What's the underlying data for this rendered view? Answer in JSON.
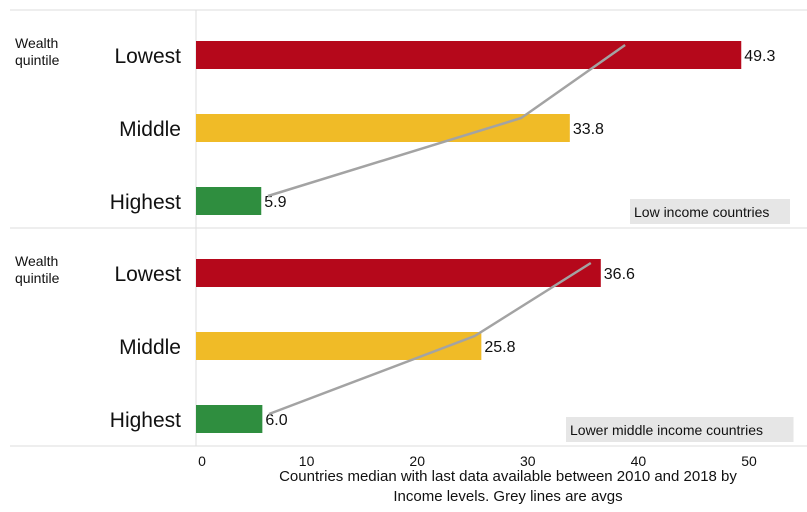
{
  "chart_data": [
    {
      "type": "bar",
      "orientation": "horizontal",
      "panel_label": "Low income countries",
      "ylabel": "Wealth quintile",
      "categories": [
        "Lowest",
        "Middle",
        "Highest"
      ],
      "values": [
        49.3,
        33.8,
        5.9
      ],
      "value_labels": [
        "49.3",
        "33.8",
        "5.9"
      ],
      "avg_line": [
        38.8,
        29.4,
        6.5
      ],
      "colors": [
        "#b5081b",
        "#f0bb27",
        "#2f8e3f"
      ],
      "xlim": [
        0,
        55
      ]
    },
    {
      "type": "bar",
      "orientation": "horizontal",
      "panel_label": "Lower middle income countries",
      "ylabel": "Wealth quintile",
      "categories": [
        "Lowest",
        "Middle",
        "Highest"
      ],
      "values": [
        36.6,
        25.8,
        6.0
      ],
      "value_labels": [
        "36.6",
        "25.8",
        "6.0"
      ],
      "avg_line": [
        35.7,
        25.2,
        6.6
      ],
      "colors": [
        "#b5081b",
        "#f0bb27",
        "#2f8e3f"
      ],
      "xlim": [
        0,
        55
      ]
    }
  ],
  "x_axis": {
    "ticks": [
      0,
      10,
      20,
      30,
      40,
      50
    ],
    "tick_labels": [
      "0",
      "10",
      "20",
      "30",
      "40",
      "50"
    ],
    "caption_lines": [
      "Countries median with last data available between 2010 and 2018 by",
      "Income levels. Grey lines are avgs"
    ]
  },
  "colors": {
    "lowest": "#b5081b",
    "middle": "#f0bb27",
    "highest": "#2f8e3f",
    "avg_line": "#a3a3a3",
    "panel_label_bg": "#e6e6e6",
    "divider": "#dddddd"
  }
}
